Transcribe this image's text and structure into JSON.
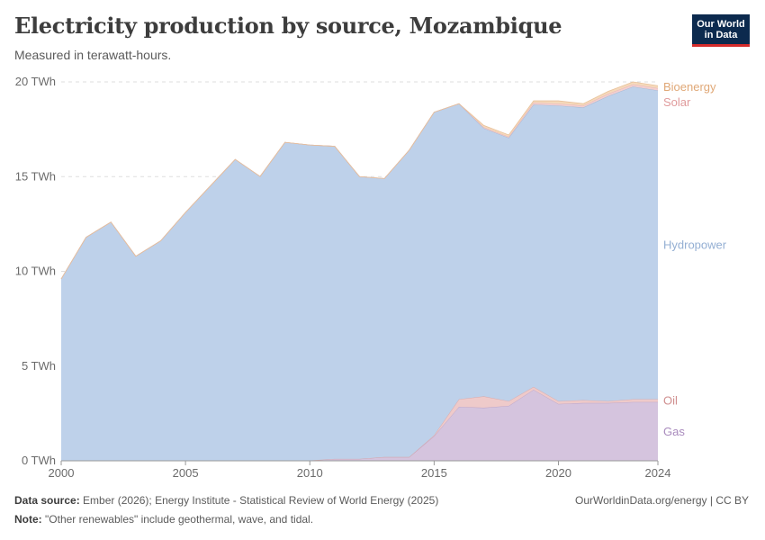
{
  "header": {
    "title": "Electricity production by source, Mozambique",
    "subtitle": "Measured in terawatt-hours."
  },
  "logo": {
    "line1": "Our World",
    "line2": "in Data"
  },
  "footer": {
    "source_label": "Data source:",
    "source_text": "Ember (2026); Energy Institute - Statistical Review of World Energy (2025)",
    "note_label": "Note:",
    "note_text": "\"Other renewables\" include geothermal, wave, and tidal.",
    "url": "OurWorldinData.org/energy | CC BY"
  },
  "chart_data": {
    "type": "area",
    "stacked": true,
    "x": [
      2000,
      2001,
      2002,
      2003,
      2004,
      2005,
      2006,
      2007,
      2008,
      2009,
      2010,
      2011,
      2012,
      2013,
      2014,
      2015,
      2016,
      2017,
      2018,
      2019,
      2020,
      2021,
      2022,
      2023,
      2024
    ],
    "x_ticks": [
      {
        "value": 2000,
        "label": "2000"
      },
      {
        "value": 2005,
        "label": "2005"
      },
      {
        "value": 2010,
        "label": "2010"
      },
      {
        "value": 2015,
        "label": "2015"
      },
      {
        "value": 2020,
        "label": "2020"
      },
      {
        "value": 2024,
        "label": "2024"
      }
    ],
    "y_ticks": [
      {
        "value": 0,
        "label": "0 TWh"
      },
      {
        "value": 5,
        "label": "5 TWh"
      },
      {
        "value": 10,
        "label": "10 TWh"
      },
      {
        "value": 15,
        "label": "15 TWh"
      },
      {
        "value": 20,
        "label": "20 TWh"
      }
    ],
    "ylim": [
      0,
      20
    ],
    "grid": "horizontal-dashed",
    "legend": "right-inline",
    "series": [
      {
        "name": "Gas",
        "color": "#d5c4de",
        "stroke": "#b8a2c8",
        "label_color": "#a98bbd",
        "values": [
          0,
          0,
          0,
          0,
          0.01,
          0.01,
          0.01,
          0.01,
          0.01,
          0.01,
          0.02,
          0.1,
          0.1,
          0.2,
          0.2,
          1.3,
          2.85,
          2.8,
          2.9,
          3.75,
          3.0,
          3.05,
          3.05,
          3.1,
          3.1
        ]
      },
      {
        "name": "Oil",
        "color": "#eecaca",
        "stroke": "#dba6a6",
        "label_color": "#d08f8f",
        "values": [
          0,
          0,
          0,
          0,
          0,
          0,
          0,
          0,
          0,
          0,
          0,
          0,
          0,
          0,
          0,
          0.05,
          0.4,
          0.6,
          0.25,
          0.15,
          0.15,
          0.15,
          0.1,
          0.15,
          0.15
        ]
      },
      {
        "name": "Hydropower",
        "color": "#bed1ea",
        "stroke": "#9db4d2",
        "label_color": "#94afd3",
        "values": [
          9.6,
          11.8,
          12.6,
          10.8,
          11.6,
          13.1,
          14.5,
          15.9,
          15.0,
          16.8,
          16.65,
          16.5,
          14.9,
          14.7,
          16.2,
          17.05,
          15.6,
          14.15,
          13.9,
          14.9,
          15.6,
          15.45,
          16.1,
          16.5,
          16.3
        ]
      },
      {
        "name": "Solar",
        "color": "#f2cfd0",
        "stroke": "#e6b0b2",
        "label_color": "#e09b9c",
        "values": [
          0,
          0,
          0,
          0,
          0,
          0,
          0,
          0,
          0,
          0,
          0,
          0,
          0,
          0,
          0,
          0,
          0,
          0.05,
          0.05,
          0.1,
          0.1,
          0.1,
          0.12,
          0.12,
          0.12
        ]
      },
      {
        "name": "Bioenergy",
        "color": "#f5d9bb",
        "stroke": "#e8c099",
        "label_color": "#e0a877",
        "values": [
          0,
          0,
          0,
          0,
          0,
          0,
          0,
          0,
          0,
          0,
          0,
          0,
          0,
          0,
          0,
          0,
          0,
          0.1,
          0.1,
          0.1,
          0.15,
          0.1,
          0.13,
          0.13,
          0.13
        ]
      }
    ]
  }
}
